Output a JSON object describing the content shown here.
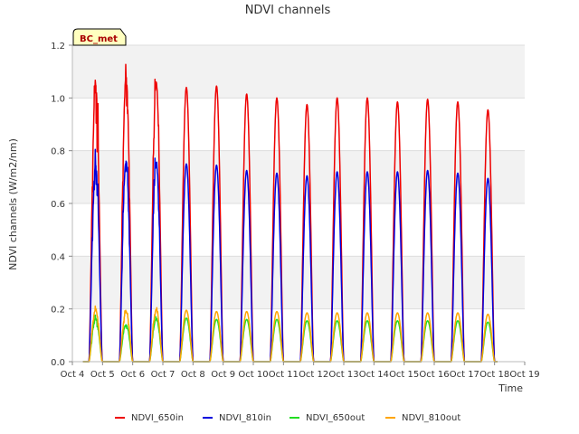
{
  "chart_data": {
    "type": "line",
    "title": "NDVI channels",
    "xlabel": "Time",
    "ylabel": "NDVI channels (W/m2/nm)",
    "badge": "BC_met",
    "x_ticks": [
      "Oct 4",
      "Oct 5",
      "Oct 6",
      "Oct 7",
      "Oct 8",
      "Oct 9",
      "Oct 10",
      "Oct 11",
      "Oct 12",
      "Oct 13",
      "Oct 14",
      "Oct 15",
      "Oct 16",
      "Oct 17",
      "Oct 18",
      "Oct 19"
    ],
    "x_range_days": [
      0,
      15
    ],
    "ylim": [
      0.0,
      1.2
    ],
    "y_ticks": [
      "0.0",
      "0.2",
      "0.4",
      "0.6",
      "0.8",
      "1.0",
      "1.2"
    ],
    "day_peak_x": [
      0.77,
      1.78,
      2.78,
      3.78,
      4.78,
      5.78,
      6.78,
      7.78,
      8.78,
      9.78,
      10.78,
      11.78,
      12.78,
      13.78
    ],
    "series": [
      {
        "name": "NDVI_650in",
        "color": "#ee0000",
        "peaks": [
          1.05,
          1.08,
          1.06,
          1.04,
          1.045,
          1.015,
          1.0,
          0.975,
          1.0,
          1.0,
          0.985,
          0.995,
          0.985,
          0.955
        ]
      },
      {
        "name": "NDVI_810in",
        "color": "#0000dd",
        "peaks": [
          0.745,
          0.76,
          0.755,
          0.75,
          0.745,
          0.725,
          0.715,
          0.705,
          0.72,
          0.72,
          0.72,
          0.725,
          0.715,
          0.695
        ]
      },
      {
        "name": "NDVI_650out",
        "color": "#22dd22",
        "peaks": [
          0.165,
          0.14,
          0.16,
          0.165,
          0.16,
          0.16,
          0.16,
          0.155,
          0.155,
          0.155,
          0.155,
          0.155,
          0.155,
          0.15
        ]
      },
      {
        "name": "NDVI_810out",
        "color": "#ffa500",
        "peaks": [
          0.195,
          0.19,
          0.195,
          0.195,
          0.19,
          0.19,
          0.19,
          0.185,
          0.185,
          0.185,
          0.185,
          0.185,
          0.185,
          0.18
        ]
      }
    ],
    "legend_position": "bottom-center",
    "grid": true
  }
}
